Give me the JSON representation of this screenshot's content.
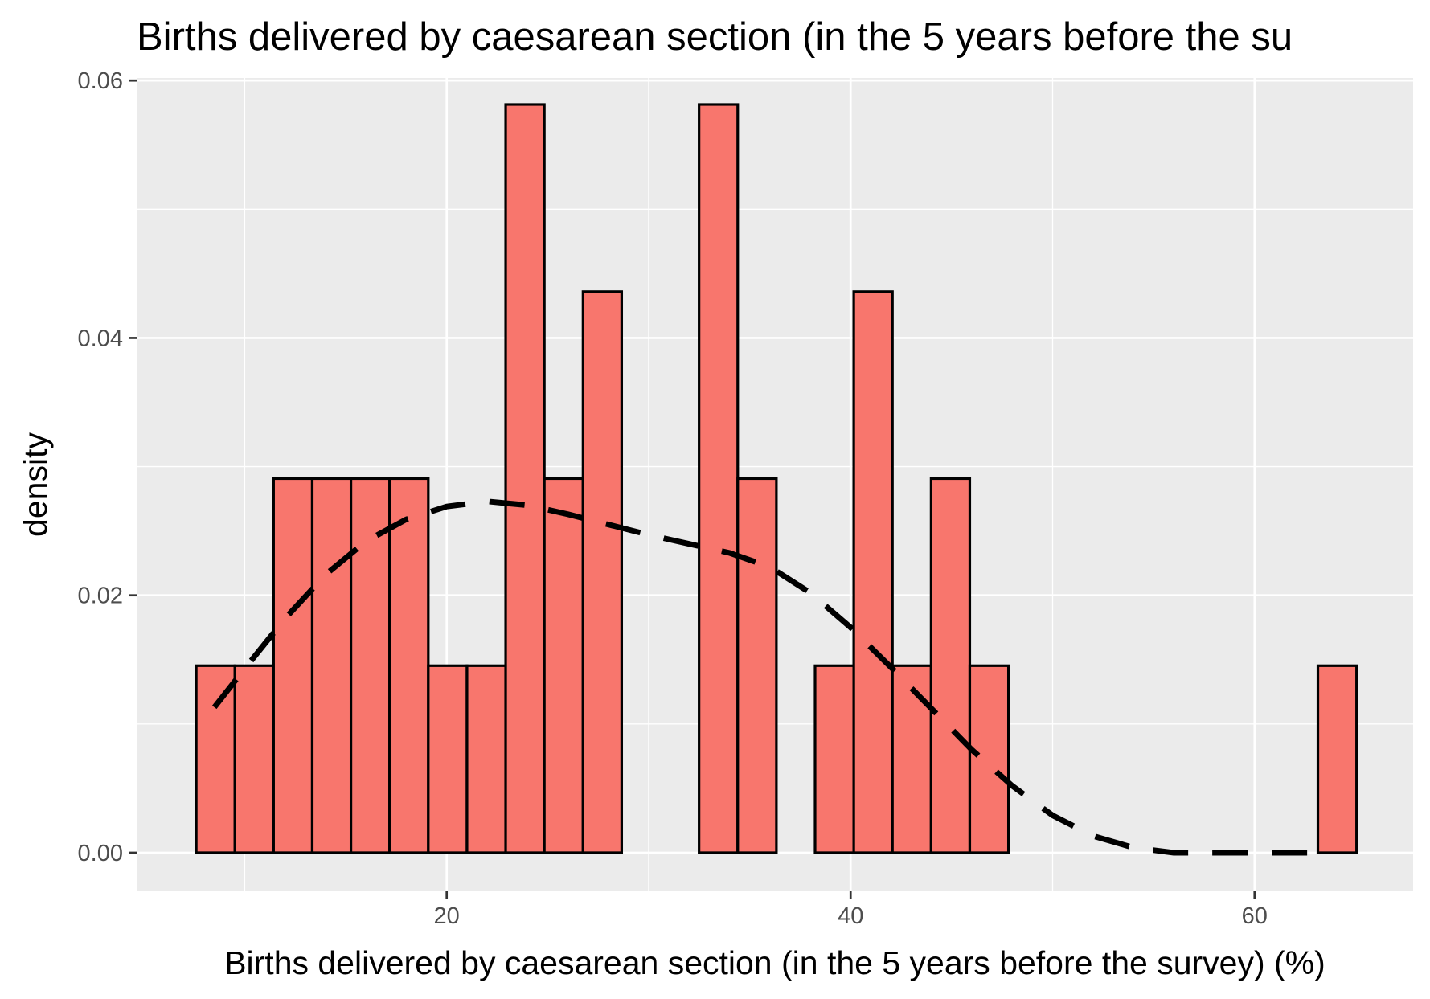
{
  "chart_data": {
    "type": "bar",
    "subtype": "histogram-with-density-curve",
    "title": "Births delivered by caesarean section (in the 5 years before the su",
    "xlabel": "Births delivered by caesarean section (in the 5 years before the survey) (%)",
    "ylabel": "density",
    "xlim": [
      4.65,
      67.85
    ],
    "ylim": [
      -0.003,
      0.0602
    ],
    "x_ticks": [
      20,
      40,
      60
    ],
    "x_tick_labels": [
      "20",
      "40",
      "60"
    ],
    "y_ticks": [
      0,
      0.02,
      0.04,
      0.06
    ],
    "y_tick_labels": [
      "0.00",
      "0.02",
      "0.04",
      "0.06"
    ],
    "x_minor_gridlines": [
      10,
      30,
      50
    ],
    "y_minor_gridlines": [
      0.01,
      0.03,
      0.05
    ],
    "grid": true,
    "bin_width": 1.915,
    "bins": [
      {
        "x0": 7.6,
        "x1": 9.515,
        "density": 0.01453
      },
      {
        "x0": 9.515,
        "x1": 11.43,
        "density": 0.01453
      },
      {
        "x0": 11.43,
        "x1": 13.345,
        "density": 0.02907
      },
      {
        "x0": 13.345,
        "x1": 15.26,
        "density": 0.02907
      },
      {
        "x0": 15.26,
        "x1": 17.175,
        "density": 0.02907
      },
      {
        "x0": 17.175,
        "x1": 19.09,
        "density": 0.02907
      },
      {
        "x0": 19.09,
        "x1": 21.005,
        "density": 0.01453
      },
      {
        "x0": 21.005,
        "x1": 22.92,
        "density": 0.01453
      },
      {
        "x0": 22.92,
        "x1": 24.835,
        "density": 0.05814
      },
      {
        "x0": 24.835,
        "x1": 26.75,
        "density": 0.02907
      },
      {
        "x0": 26.75,
        "x1": 28.665,
        "density": 0.0436
      },
      {
        "x0": 28.665,
        "x1": 30.58,
        "density": 0
      },
      {
        "x0": 30.58,
        "x1": 32.495,
        "density": 0
      },
      {
        "x0": 32.495,
        "x1": 34.41,
        "density": 0.05814
      },
      {
        "x0": 34.41,
        "x1": 36.325,
        "density": 0.02907
      },
      {
        "x0": 36.325,
        "x1": 38.24,
        "density": 0
      },
      {
        "x0": 38.24,
        "x1": 40.155,
        "density": 0.01453
      },
      {
        "x0": 40.155,
        "x1": 42.07,
        "density": 0.0436
      },
      {
        "x0": 42.07,
        "x1": 43.985,
        "density": 0.01453
      },
      {
        "x0": 43.985,
        "x1": 45.9,
        "density": 0.02907
      },
      {
        "x0": 45.9,
        "x1": 47.815,
        "density": 0.01453
      },
      {
        "x0": 47.815,
        "x1": 49.73,
        "density": 0
      },
      {
        "x0": 49.73,
        "x1": 51.645,
        "density": 0
      },
      {
        "x0": 51.645,
        "x1": 53.56,
        "density": 0
      },
      {
        "x0": 53.56,
        "x1": 55.475,
        "density": 0
      },
      {
        "x0": 55.475,
        "x1": 57.39,
        "density": 0
      },
      {
        "x0": 57.39,
        "x1": 59.305,
        "density": 0
      },
      {
        "x0": 59.305,
        "x1": 61.22,
        "density": 0
      },
      {
        "x0": 61.22,
        "x1": 63.135,
        "density": 0
      },
      {
        "x0": 63.135,
        "x1": 65.05,
        "density": 0.01453
      }
    ],
    "series": [
      {
        "type": "line",
        "style": "dashed",
        "x": [
          8.5,
          10,
          12,
          14,
          16,
          18,
          20,
          22,
          24,
          26,
          28,
          30,
          32,
          34,
          36,
          38,
          40,
          42,
          44,
          46,
          48,
          50,
          52,
          54,
          56,
          58,
          60,
          62,
          63.1
        ],
        "y": [
          0.0113,
          0.0143,
          0.0182,
          0.0216,
          0.0242,
          0.0259,
          0.0269,
          0.0273,
          0.027,
          0.0263,
          0.0255,
          0.0247,
          0.024,
          0.0233,
          0.0222,
          0.0202,
          0.0175,
          0.0144,
          0.0112,
          0.008,
          0.0052,
          0.0029,
          0.0013,
          0.0004,
          0.0,
          0.0,
          0.0,
          0.0,
          0.0
        ]
      }
    ],
    "colors": {
      "bar_fill": "#F8766D",
      "bar_outline": "#000000",
      "panel_background": "#EBEBEB",
      "gridline": "#FFFFFF",
      "curve": "#000000",
      "tick_text": "#4D4D4D",
      "tick_mark": "#333333"
    }
  }
}
